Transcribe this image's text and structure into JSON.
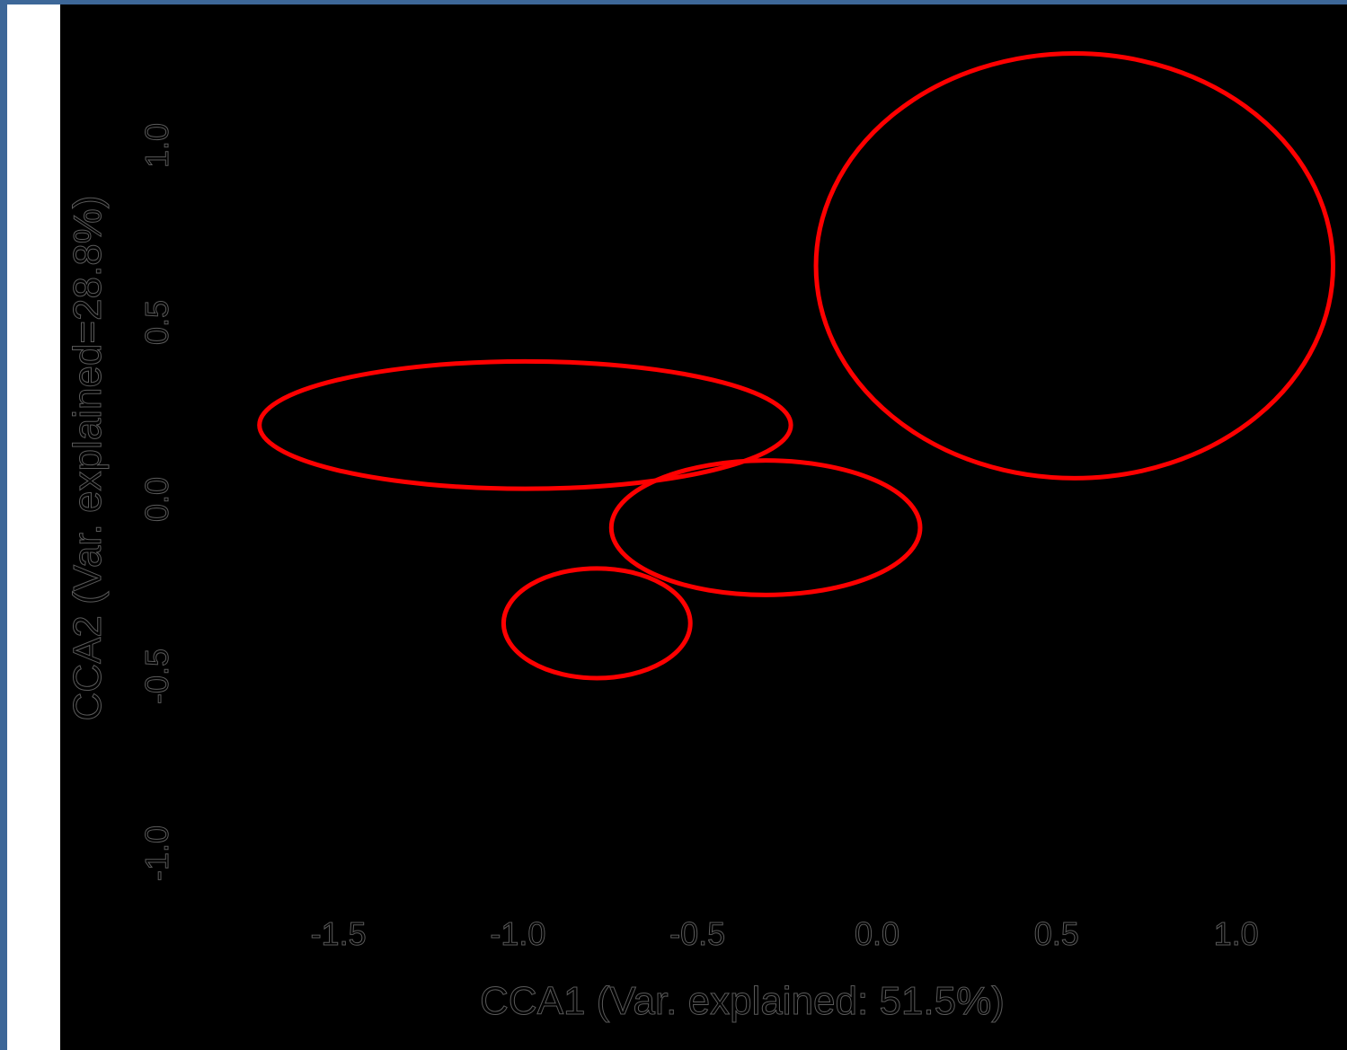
{
  "chart_data": {
    "type": "scatter",
    "title": "",
    "xlabel": "CCA1 (Var. explained: 51.5%)",
    "ylabel": "CCA2 (Var. explained=28.8%)",
    "xlim": [
      -1.75,
      1.25
    ],
    "ylim": [
      -1.1,
      1.25
    ],
    "x_ticks": [
      {
        "value": -1.5,
        "label": "-1.5"
      },
      {
        "value": -1.0,
        "label": "-1.0"
      },
      {
        "value": -0.5,
        "label": "-0.5"
      },
      {
        "value": 0.0,
        "label": "0.0"
      },
      {
        "value": 0.5,
        "label": "0.5"
      },
      {
        "value": 1.0,
        "label": "1.0"
      }
    ],
    "y_ticks": [
      {
        "value": 1.0,
        "label": "1.0"
      },
      {
        "value": 0.5,
        "label": "0.5"
      },
      {
        "value": 0.0,
        "label": "0.0"
      },
      {
        "value": -0.5,
        "label": "-0.5"
      },
      {
        "value": -1.0,
        "label": "-1.0"
      }
    ],
    "grid": false,
    "ellipse_color": "#ff0000",
    "series": [
      {
        "shape": "ellipse",
        "cx": -0.98,
        "cy": 0.21,
        "rx": 0.74,
        "ry": 0.18
      },
      {
        "shape": "ellipse",
        "cx": 0.55,
        "cy": 0.66,
        "rx": 0.72,
        "ry": 0.6
      },
      {
        "shape": "ellipse",
        "cx": -0.31,
        "cy": -0.08,
        "rx": 0.43,
        "ry": 0.19
      },
      {
        "shape": "ellipse",
        "cx": -0.78,
        "cy": -0.35,
        "rx": 0.26,
        "ry": 0.155
      }
    ]
  }
}
